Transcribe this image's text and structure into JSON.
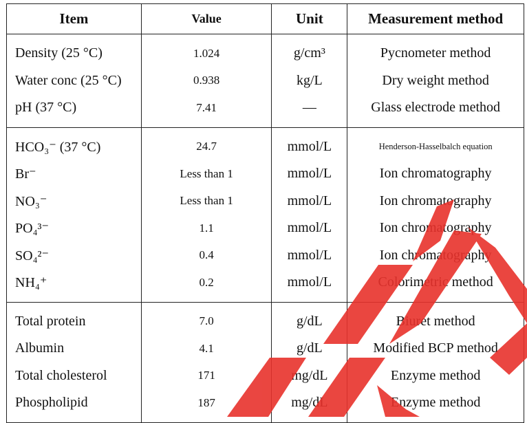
{
  "table": {
    "headers": {
      "item": "Item",
      "value": "Value",
      "unit": "Unit",
      "method": "Measurement method"
    },
    "groups": [
      {
        "rows": [
          {
            "item": "Density (25 °C)",
            "value": "1.024",
            "unit": "g/cm³",
            "method": "Pycnometer method"
          },
          {
            "item": "Water conc (25 °C)",
            "value": "0.938",
            "unit": "kg/L",
            "method": "Dry weight method"
          },
          {
            "item": "pH (37 °C)",
            "value": "7.41",
            "unit": "—",
            "method": "Glass electrode method"
          }
        ]
      },
      {
        "rows": [
          {
            "item": "HCO₃⁻ (37 °C)",
            "value": "24.7",
            "unit": "mmol/L",
            "method": "Henderson-Hasselbalch equation"
          },
          {
            "item": "Br⁻",
            "value": "Less than 1",
            "unit": "mmol/L",
            "method": "Ion chromatography"
          },
          {
            "item": "NO₃⁻",
            "value": "Less than 1",
            "unit": "mmol/L",
            "method": "Ion chromatography"
          },
          {
            "item": "PO₄³⁻",
            "value": "1.1",
            "unit": "mmol/L",
            "method": "Ion chromatography"
          },
          {
            "item": "SO₄²⁻",
            "value": "0.4",
            "unit": "mmol/L",
            "method": "Ion chromatography"
          },
          {
            "item": "NH₄⁺",
            "value": "0.2",
            "unit": "mmol/L",
            "method": "Colorimetric method"
          }
        ]
      },
      {
        "rows": [
          {
            "item": "Total protein",
            "value": "7.0",
            "unit": "g/dL",
            "method": "Biuret method"
          },
          {
            "item": "Albumin",
            "value": "4.1",
            "unit": "g/dL",
            "method": "Modified BCP method"
          },
          {
            "item": "Total cholesterol",
            "value": "171",
            "unit": "mg/dL",
            "method": "Enzyme method"
          },
          {
            "item": "Phospholipid",
            "value": "187",
            "unit": "mg/dL",
            "method": "Enzyme method"
          }
        ]
      }
    ]
  },
  "watermark": {
    "color": "#e8322c",
    "name": "red-diagonal-watermark"
  }
}
